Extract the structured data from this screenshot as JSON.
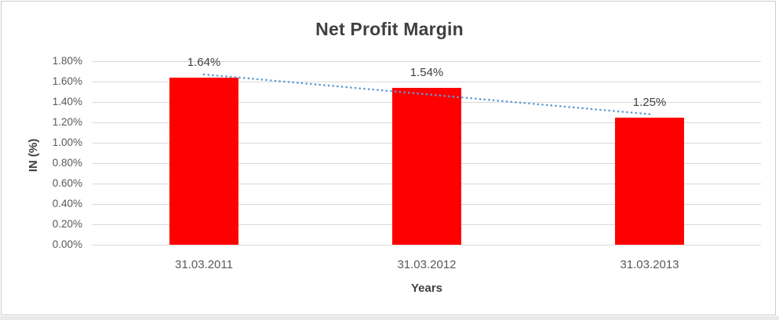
{
  "chart_data": {
    "type": "bar",
    "title": "Net Profit Margin",
    "xlabel": "Years",
    "ylabel": "IN (%)",
    "categories": [
      "31.03.2011",
      "31.03.2012",
      "31.03.2013"
    ],
    "values": [
      1.64,
      1.54,
      1.25
    ],
    "value_labels": [
      "1.64%",
      "1.54%",
      "1.25%"
    ],
    "yticks": [
      "0.00%",
      "0.20%",
      "0.40%",
      "0.60%",
      "0.80%",
      "1.00%",
      "1.20%",
      "1.40%",
      "1.60%",
      "1.80%"
    ],
    "ylim": [
      0,
      1.8
    ],
    "ytick_step": 0.2,
    "grid": true,
    "legend": false,
    "trendline": {
      "type": "linear",
      "style": "dotted",
      "endpoints": [
        1.67,
        1.28
      ],
      "color": "#5B9BD5"
    },
    "colors": {
      "bar": "#FF0000",
      "gridline": "#D9D9D9",
      "tick_text": "#595959",
      "title_text": "#404040",
      "axis_title_text": "#404040",
      "data_label_text": "#404040",
      "chart_border": "#CDCDCD"
    }
  }
}
